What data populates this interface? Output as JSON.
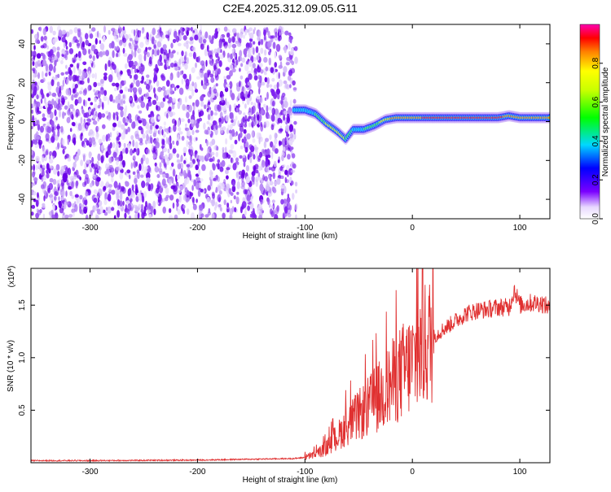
{
  "figure": {
    "title": "C2E4.2025.312.09.05.G11"
  },
  "chart_data": [
    {
      "type": "heatmap",
      "title": "C2E4.2025.312.09.05.G11",
      "xlabel": "Height of straight line (km)",
      "ylabel": "Frequency (Hz)",
      "xlim": [
        -355,
        128
      ],
      "ylim": [
        -50,
        50
      ],
      "x_ticks": [
        -300,
        -200,
        -100,
        0,
        100
      ],
      "x_tick_labels": [
        "-300",
        "-200",
        "-100",
        "0",
        "100"
      ],
      "y_ticks": [
        -40,
        -20,
        0,
        20,
        40
      ],
      "y_tick_labels": [
        "-40",
        "-20",
        "0",
        "20",
        "40"
      ],
      "noise_region": {
        "x_from": -355,
        "x_to": -108,
        "freq_from": -50,
        "freq_to": 48
      },
      "signal_track": {
        "x": [
          -110,
          -100,
          -90,
          -80,
          -70,
          -62,
          -55,
          -45,
          -35,
          -25,
          -15,
          -5,
          0,
          20,
          40,
          60,
          80,
          90,
          100,
          128
        ],
        "frequency": [
          6,
          6,
          4,
          -1,
          -5,
          -9,
          -4,
          -4,
          -2,
          1,
          2,
          2,
          2,
          2,
          2,
          2,
          2,
          3,
          2,
          2
        ],
        "amplitude": [
          0.5,
          0.55,
          0.6,
          0.7,
          0.75,
          0.7,
          0.6,
          0.6,
          0.65,
          0.75,
          0.85,
          0.8,
          0.85,
          0.95,
          1.0,
          1.0,
          0.95,
          0.85,
          0.9,
          0.9
        ]
      },
      "colorbar": {
        "label": "Normalized spectral amplitude",
        "range": [
          0,
          1
        ],
        "ticks": [
          0.0,
          0.2,
          0.4,
          0.6,
          0.8
        ],
        "tick_labels": [
          "0.0",
          "0.2",
          "0.4",
          "0.6",
          "0.8"
        ]
      }
    },
    {
      "type": "line",
      "xlabel": "Height of straight line (km)",
      "ylabel": "SNR (10 * v/v)",
      "y_multiplier_label": "(x10",
      "y_multiplier_exp": "4",
      "y_multiplier_close": ")",
      "xlim": [
        -355,
        128
      ],
      "ylim": [
        0,
        18500
      ],
      "x_ticks": [
        -300,
        -200,
        -100,
        0,
        100
      ],
      "x_tick_labels": [
        "-300",
        "-200",
        "-100",
        "0",
        "100"
      ],
      "y_ticks": [
        5000,
        10000,
        15000
      ],
      "y_tick_labels": [
        "0.5",
        "1.0",
        "1.5"
      ],
      "series": [
        {
          "name": "SNR",
          "color": "#e03030",
          "x": [
            -355,
            -300,
            -200,
            -110,
            -100,
            -90,
            -80,
            -70,
            -60,
            -50,
            -40,
            -30,
            -20,
            -10,
            0,
            10,
            20,
            30,
            40,
            50,
            60,
            70,
            80,
            90,
            95,
            100,
            110,
            120,
            128
          ],
          "values": [
            200,
            200,
            250,
            400,
            500,
            800,
            1400,
            2500,
            3600,
            4500,
            5400,
            6400,
            7500,
            8600,
            9500,
            11000,
            12000,
            12800,
            13500,
            14200,
            14500,
            14600,
            14800,
            14800,
            16500,
            15000,
            15200,
            15200,
            14700
          ]
        }
      ]
    }
  ],
  "colors": {
    "noise": "#6a00e6",
    "line": "#e03030"
  }
}
